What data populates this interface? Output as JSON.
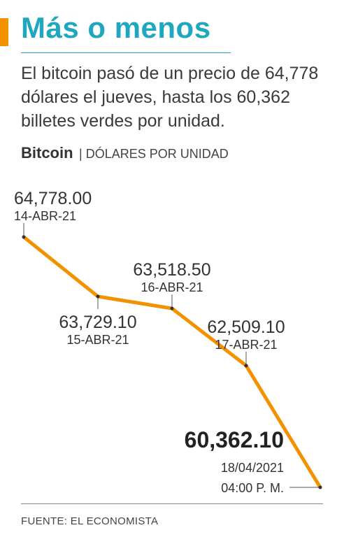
{
  "header": {
    "title": "Más o menos",
    "subtitle": "El bitcoin pasó de un precio de 64,778 dólares el jueves, hasta los 60,362 billetes verdes por unidad."
  },
  "chart_heading": {
    "name": "Bitcoin",
    "unit": "| DÓLARES POR UNIDAD"
  },
  "source": "FUENTE: EL ECONOMISTA",
  "colors": {
    "accent": "#f39200",
    "title": "#1fa7bf",
    "line": "#f39200",
    "text": "#3a3a3a"
  },
  "chart_data": {
    "type": "line",
    "title": "Bitcoin",
    "ylabel": "DÓLARES POR UNIDAD",
    "xlabel": "",
    "grid": false,
    "ylim": [
      60362.1,
      64778.0
    ],
    "points": [
      {
        "date": "14-ABR-21",
        "value": 64778.0,
        "value_label": "64,778.00",
        "date_label": "14-ABR-21",
        "time_label": "",
        "label_side": "above",
        "highlight": false
      },
      {
        "date": "15-ABR-21",
        "value": 63729.1,
        "value_label": "63,729.10",
        "date_label": "15-ABR-21",
        "time_label": "",
        "label_side": "below",
        "highlight": false
      },
      {
        "date": "16-ABR-21",
        "value": 63518.5,
        "value_label": "63,518.50",
        "date_label": "16-ABR-21",
        "time_label": "",
        "label_side": "above",
        "highlight": false
      },
      {
        "date": "17-ABR-21",
        "value": 62509.1,
        "value_label": "62,509.10",
        "date_label": "17-ABR-21",
        "time_label": "",
        "label_side": "above",
        "highlight": false
      },
      {
        "date": "18/04/2021",
        "value": 60362.1,
        "value_label": "60,362.10",
        "date_label": "18/04/2021",
        "time_label": "04:00 P. M.",
        "label_side": "left",
        "highlight": true
      }
    ]
  }
}
